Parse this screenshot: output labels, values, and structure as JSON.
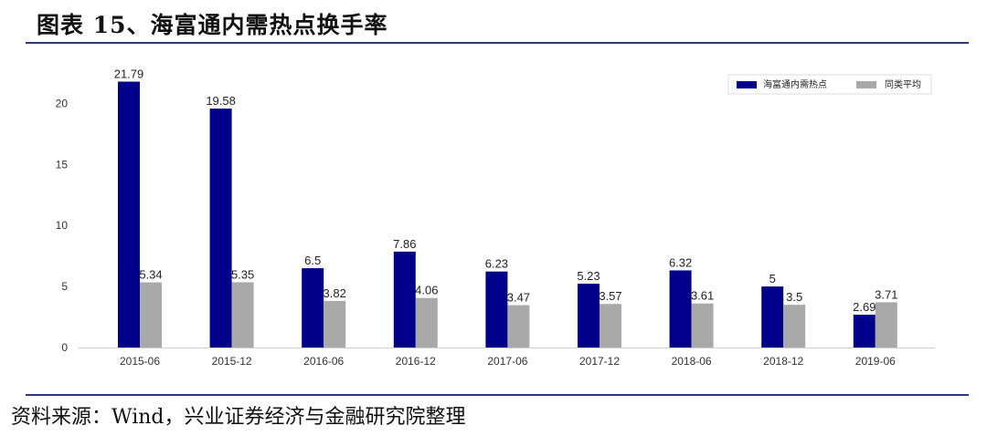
{
  "figure_title": "图表 15、海富通内需热点换手率",
  "source_note": "资料来源：Wind，兴业证券经济与金融研究院整理",
  "colors": {
    "series_1": "#00008b",
    "series_2": "#a9a9a9",
    "rule": "#2f3a78"
  },
  "chart_data": {
    "type": "bar",
    "categories": [
      "2015-06",
      "2015-12",
      "2016-06",
      "2016-12",
      "2017-06",
      "2017-12",
      "2018-06",
      "2018-12",
      "2019-06"
    ],
    "series": [
      {
        "name": "海富通内需热点",
        "values": [
          21.79,
          19.58,
          6.5,
          7.86,
          6.23,
          5.23,
          6.32,
          5.0,
          2.69
        ]
      },
      {
        "name": "同类平均",
        "values": [
          5.34,
          5.35,
          3.82,
          4.06,
          3.47,
          3.57,
          3.61,
          3.5,
          3.71
        ]
      }
    ],
    "yticks": [
      0,
      5,
      10,
      15,
      20
    ],
    "ylim": [
      0,
      22.5
    ],
    "grid": false,
    "legend_position": "top-right"
  }
}
